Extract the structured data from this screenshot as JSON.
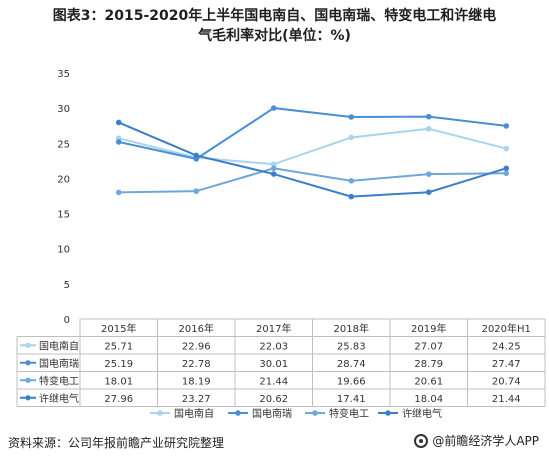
{
  "title_line1": "图表3：2015-2020年上半年国电南自、国电南瑞、特变电工和许继电",
  "title_line2": "气毛利率对比(单位：%)",
  "source": "资料来源：公司年报前瞻产业研究院整理",
  "brand": "@前瞻经济学人APP",
  "chart_data": {
    "type": "line",
    "categories": [
      "2015年",
      "2016年",
      "2017年",
      "2018年",
      "2019年",
      "2020年H1"
    ],
    "ylim": [
      0,
      35
    ],
    "yticks": [
      0,
      5,
      10,
      15,
      20,
      25,
      30,
      35
    ],
    "legend": "bottom",
    "grid": false,
    "series": [
      {
        "name": "国电南自",
        "values": [
          25.71,
          22.96,
          22.03,
          25.83,
          27.07,
          24.25
        ],
        "color": "#a9d3ee",
        "labels": [
          "25.71",
          "22.96",
          "22.03",
          "25.83",
          "27.07",
          "24.25"
        ]
      },
      {
        "name": "国电南瑞",
        "values": [
          25.19,
          22.78,
          30.01,
          28.74,
          28.79,
          27.47
        ],
        "color": "#4a8fd4",
        "labels": [
          "25.19",
          "22.78",
          "30.01",
          "28.74",
          "28.79",
          "27.47"
        ]
      },
      {
        "name": "特变电工",
        "values": [
          18.01,
          18.19,
          21.44,
          19.66,
          20.61,
          20.74
        ],
        "color": "#6fa7dd",
        "labels": [
          "18.01",
          "18.19",
          "21.44",
          "19.66",
          "20.61",
          "20.74"
        ]
      },
      {
        "name": "许继电气",
        "values": [
          27.96,
          23.27,
          20.62,
          17.41,
          18.04,
          21.44
        ],
        "color": "#3b7fc8",
        "labels": [
          "27.96",
          "23.27",
          "20.62",
          "17.41",
          "18.04",
          "21.44"
        ]
      }
    ]
  }
}
